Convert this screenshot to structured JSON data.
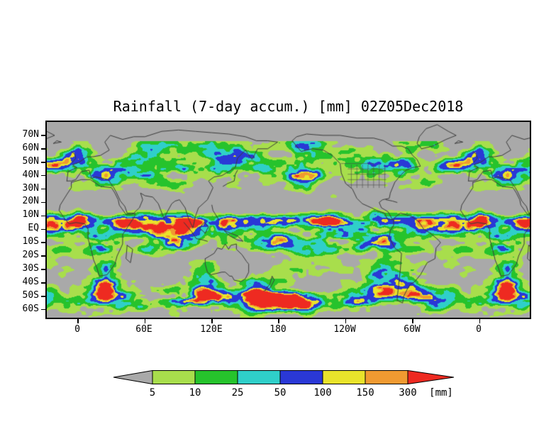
{
  "title": "Rainfall (7-day accum.) [mm] 02Z05Dec2018",
  "map": {
    "lat_ticks": [
      "70N",
      "60N",
      "50N",
      "40N",
      "30N",
      "20N",
      "10N",
      "EQ",
      "10S",
      "20S",
      "30S",
      "40S",
      "50S",
      "60S"
    ],
    "lon_ticks": [
      "0",
      "60E",
      "120E",
      "180",
      "120W",
      "60W",
      "0"
    ],
    "background_color": "#a9a9a9",
    "coastline_color": "#3b3b3b",
    "state_border_color": "#4a4a4a",
    "frame_color": "#000000"
  },
  "colorbar": {
    "labels": [
      "5",
      "10",
      "25",
      "50",
      "100",
      "150",
      "300"
    ],
    "unit_label": "[mm]",
    "segment_colors": [
      "#a9a9a9",
      "#a8de4c",
      "#26c32c",
      "#2fcfc9",
      "#2a38d6",
      "#e9e32b",
      "#f09a31",
      "#ee2a21"
    ]
  },
  "chart_data": {
    "type": "heatmap",
    "title": "Rainfall (7-day accum.) [mm] 02Z05Dec2018",
    "variable": "Rainfall (7-day accum.)",
    "unit": "mm",
    "valid_label": "02Z05Dec2018",
    "x_axis": {
      "ticks": [
        "0",
        "60E",
        "120E",
        "180",
        "120W",
        "60W",
        "0"
      ]
    },
    "y_axis": {
      "ticks": [
        "70N",
        "60N",
        "50N",
        "40N",
        "30N",
        "20N",
        "10N",
        "EQ",
        "10S",
        "20S",
        "30S",
        "40S",
        "50S",
        "60S"
      ]
    },
    "color_levels": [
      {
        "min": 5,
        "max": 10,
        "color": "#a8de4c"
      },
      {
        "min": 10,
        "max": 25,
        "color": "#26c32c"
      },
      {
        "min": 25,
        "max": 50,
        "color": "#2fcfc9"
      },
      {
        "min": 50,
        "max": 100,
        "color": "#2a38d6"
      },
      {
        "min": 100,
        "max": 150,
        "color": "#e9e32b"
      },
      {
        "min": 150,
        "max": 300,
        "color": "#f09a31"
      },
      {
        "min": 300,
        "max": null,
        "color": "#ee2a21"
      }
    ],
    "below_min_color": "#a9a9a9",
    "legend_position": "bottom"
  }
}
